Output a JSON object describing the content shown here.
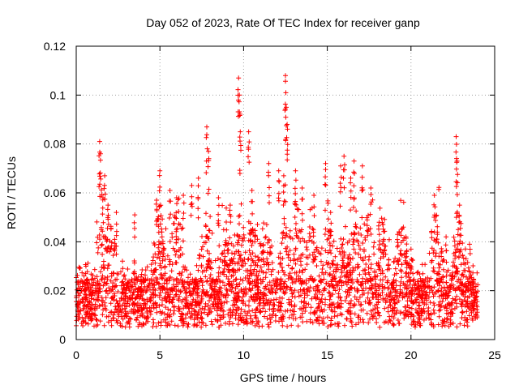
{
  "chart_data": {
    "type": "scatter",
    "title": "Day 052 of 2023, Rate Of TEC Index for receiver ganp",
    "xlabel": "GPS time / hours",
    "ylabel": "ROTI / TECUs",
    "xlim": [
      0,
      25
    ],
    "ylim": [
      0,
      0.12
    ],
    "x_ticks": [
      0,
      5,
      10,
      15,
      20,
      25
    ],
    "y_ticks": [
      0,
      0.02,
      0.04,
      0.06,
      0.08,
      0.1,
      0.12
    ],
    "x_tick_labels": [
      "0",
      "5",
      "10",
      "15",
      "20",
      "25"
    ],
    "y_tick_labels": [
      "0",
      "0.02",
      "0.04",
      "0.06",
      "0.08",
      "0.1",
      "0.12"
    ],
    "grid": true,
    "marker": "+",
    "series": [
      {
        "name": "ROTI",
        "color": "#ff0000",
        "time_range_hours": [
          0,
          24
        ],
        "baseline_band": [
          0.005,
          0.025
        ],
        "peak_points": [
          {
            "x": 1.4,
            "y": 0.081
          },
          {
            "x": 1.45,
            "y": 0.076
          },
          {
            "x": 1.7,
            "y": 0.067
          },
          {
            "x": 1.6,
            "y": 0.058
          },
          {
            "x": 1.9,
            "y": 0.055
          },
          {
            "x": 2.4,
            "y": 0.052
          },
          {
            "x": 3.5,
            "y": 0.051
          },
          {
            "x": 4.8,
            "y": 0.057
          },
          {
            "x": 5.0,
            "y": 0.069
          },
          {
            "x": 5.6,
            "y": 0.061
          },
          {
            "x": 6.0,
            "y": 0.058
          },
          {
            "x": 6.4,
            "y": 0.059
          },
          {
            "x": 6.9,
            "y": 0.063
          },
          {
            "x": 7.3,
            "y": 0.066
          },
          {
            "x": 7.8,
            "y": 0.087
          },
          {
            "x": 7.9,
            "y": 0.077
          },
          {
            "x": 8.5,
            "y": 0.058
          },
          {
            "x": 9.2,
            "y": 0.055
          },
          {
            "x": 9.7,
            "y": 0.107
          },
          {
            "x": 9.75,
            "y": 0.1
          },
          {
            "x": 9.8,
            "y": 0.085
          },
          {
            "x": 10.3,
            "y": 0.085
          },
          {
            "x": 10.5,
            "y": 0.061
          },
          {
            "x": 11.5,
            "y": 0.072
          },
          {
            "x": 12.1,
            "y": 0.069
          },
          {
            "x": 12.5,
            "y": 0.108
          },
          {
            "x": 12.55,
            "y": 0.095
          },
          {
            "x": 12.6,
            "y": 0.088
          },
          {
            "x": 12.4,
            "y": 0.067
          },
          {
            "x": 13.1,
            "y": 0.069
          },
          {
            "x": 13.5,
            "y": 0.062
          },
          {
            "x": 14.2,
            "y": 0.059
          },
          {
            "x": 14.9,
            "y": 0.072
          },
          {
            "x": 15.2,
            "y": 0.052
          },
          {
            "x": 15.8,
            "y": 0.071
          },
          {
            "x": 16.0,
            "y": 0.075
          },
          {
            "x": 16.4,
            "y": 0.066
          },
          {
            "x": 16.6,
            "y": 0.073
          },
          {
            "x": 17.1,
            "y": 0.071
          },
          {
            "x": 17.6,
            "y": 0.062
          },
          {
            "x": 18.1,
            "y": 0.048
          },
          {
            "x": 19.2,
            "y": 0.043
          },
          {
            "x": 19.7,
            "y": 0.042
          },
          {
            "x": 20.0,
            "y": 0.037
          },
          {
            "x": 21.4,
            "y": 0.059
          },
          {
            "x": 22.1,
            "y": 0.042
          },
          {
            "x": 22.7,
            "y": 0.083
          },
          {
            "x": 22.75,
            "y": 0.073
          },
          {
            "x": 22.9,
            "y": 0.055
          },
          {
            "x": 23.5,
            "y": 0.039
          }
        ],
        "peak_times_hours": [
          1.5,
          2.0,
          5.0,
          6.0,
          7.8,
          9.0,
          9.8,
          10.6,
          11.3,
          12.5,
          13.2,
          14.0,
          15.0,
          16.0,
          16.7,
          17.4,
          18.3,
          19.5,
          21.5,
          22.8
        ]
      }
    ]
  }
}
